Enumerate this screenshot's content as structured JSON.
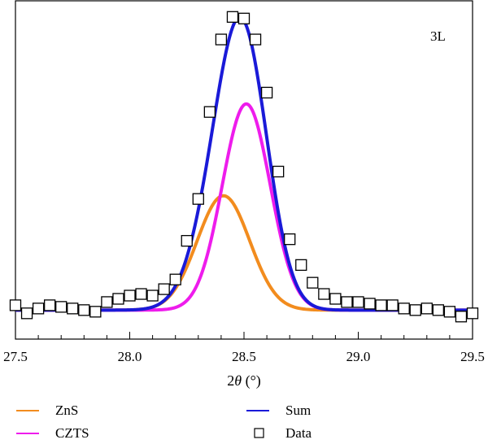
{
  "chart_data": {
    "type": "line",
    "panel_label": "3L",
    "xlabel_prefix": "2",
    "xlabel_symbol": "θ",
    "xlabel_unit": " (°)",
    "ylabel": "",
    "xlim": [
      27.5,
      29.5
    ],
    "ylim": [
      0,
      1.05
    ],
    "x_ticks": [
      27.5,
      28.0,
      28.5,
      29.0,
      29.5
    ],
    "x_tick_labels": [
      "27.5",
      "28.0",
      "28.5",
      "29.0",
      "29.5"
    ],
    "y_ticks_shown": false,
    "grid": false,
    "legend_position": "below-plot",
    "series": [
      {
        "name": "ZnS",
        "color": "#f28c1e",
        "kind": "gaussian",
        "baseline": 0.09,
        "amplitude": 0.355,
        "center": 28.41,
        "sigma": 0.115
      },
      {
        "name": "CZTS",
        "color": "#ee1cec",
        "kind": "gaussian",
        "baseline": 0.09,
        "amplitude": 0.64,
        "center": 28.51,
        "sigma": 0.105
      },
      {
        "name": "Sum",
        "color": "#1a1ad8",
        "kind": "sum_of_gaussians",
        "baseline": 0.09,
        "components": [
          {
            "amplitude": 0.355,
            "center": 28.41,
            "sigma": 0.115
          },
          {
            "amplitude": 0.64,
            "center": 28.51,
            "sigma": 0.105
          }
        ]
      },
      {
        "name": "Data",
        "color": "#000000",
        "kind": "markers",
        "x": [
          27.5,
          27.55,
          27.6,
          27.65,
          27.7,
          27.75,
          27.8,
          27.85,
          27.9,
          27.95,
          28.0,
          28.05,
          28.1,
          28.15,
          28.2,
          28.25,
          28.3,
          28.35,
          28.4,
          28.45,
          28.5,
          28.55,
          28.6,
          28.65,
          28.7,
          28.75,
          28.8,
          28.85,
          28.9,
          28.95,
          29.0,
          29.05,
          29.1,
          29.15,
          29.2,
          29.25,
          29.3,
          29.35,
          29.4,
          29.45,
          29.5
        ],
        "y": [
          0.105,
          0.08,
          0.095,
          0.105,
          0.1,
          0.095,
          0.09,
          0.085,
          0.115,
          0.125,
          0.135,
          0.14,
          0.135,
          0.155,
          0.185,
          0.305,
          0.435,
          0.705,
          0.93,
          1.0,
          0.995,
          0.93,
          0.765,
          0.52,
          0.31,
          0.23,
          0.175,
          0.14,
          0.125,
          0.115,
          0.115,
          0.11,
          0.105,
          0.105,
          0.095,
          0.09,
          0.095,
          0.09,
          0.085,
          0.07,
          0.08
        ]
      }
    ]
  },
  "legend": {
    "items": [
      {
        "label": "ZnS",
        "symbol": "line",
        "color": "#f28c1e"
      },
      {
        "label": "CZTS",
        "symbol": "line",
        "color": "#ee1cec"
      },
      {
        "label": "Sum",
        "symbol": "line",
        "color": "#1a1ad8"
      },
      {
        "label": "Data",
        "symbol": "square",
        "color": "#000000"
      }
    ]
  }
}
